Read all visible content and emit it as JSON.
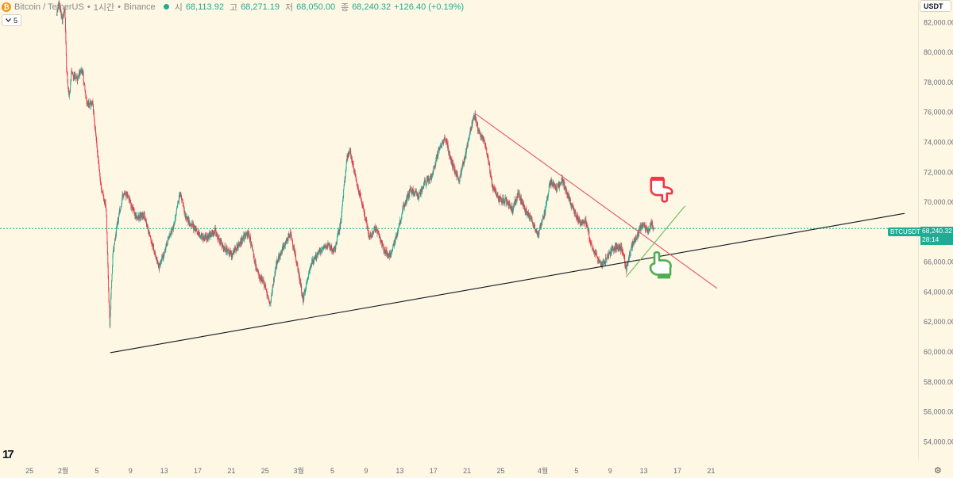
{
  "header": {
    "coin_glyph": "₿",
    "symbol": "Bitcoin / TetherUS",
    "separator1": "•",
    "interval": "1시간",
    "separator2": "•",
    "exchange": "Binance",
    "open_key": "시",
    "open": "68,113.92",
    "high_key": "고",
    "high": "68,271.19",
    "low_key": "저",
    "low": "68,050.00",
    "close_key": "종",
    "close": "68,240.32",
    "change": "+126.40 (+0.19%)"
  },
  "interval_button": {
    "icon": "chevron-down-icon",
    "label": "5"
  },
  "currency_button": {
    "label": "USDT"
  },
  "price_tag": {
    "price": "68,240.32",
    "countdown": "28:14"
  },
  "symbol_tag": {
    "label": "BTCUSDT"
  },
  "logo": {
    "text": "17"
  },
  "colors": {
    "up": "#22ab94",
    "down": "#f23645",
    "background": "#fdf7e4",
    "trendline": "#131722",
    "resistance": "#e5566a",
    "support": "#4caf50"
  },
  "chart_data": {
    "type": "candlestick",
    "y_ticks": [
      82000,
      80000,
      78000,
      76000,
      74000,
      72000,
      70000,
      68000,
      66000,
      64000,
      62000,
      60000,
      58000,
      56000,
      54000
    ],
    "y_tick_labels": [
      "82,000.00",
      "80,000.00",
      "78,000.00",
      "76,000.00",
      "74,000.00",
      "72,000.00",
      "70,000.00",
      "68,000.00",
      "66,000.00",
      "64,000.00",
      "62,000.00",
      "60,000.00",
      "58,000.00",
      "56,000.00",
      "54,000.00"
    ],
    "ylim": [
      52800,
      83500
    ],
    "x_tick_labels": [
      "25",
      "2월",
      "5",
      "9",
      "13",
      "17",
      "21",
      "25",
      "3월",
      "5",
      "9",
      "13",
      "17",
      "21",
      "25",
      "4월",
      "5",
      "9",
      "13",
      "17",
      "21"
    ],
    "x_ticks_day": [
      -4,
      0,
      4,
      8,
      12,
      16,
      20,
      24,
      28,
      32,
      36,
      40,
      44,
      48,
      52,
      57,
      61,
      65,
      69,
      73,
      77
    ],
    "xlim_day": [
      -7.5,
      101.5
    ],
    "last_price": 68240.32,
    "path_points": [
      {
        "day": -0.8,
        "price": 82500
      },
      {
        "day": -0.5,
        "price": 83300
      },
      {
        "day": -0.1,
        "price": 82100
      },
      {
        "day": 0.2,
        "price": 83000
      },
      {
        "day": 0.4,
        "price": 79000
      },
      {
        "day": 0.7,
        "price": 76900
      },
      {
        "day": 1.0,
        "price": 78600
      },
      {
        "day": 1.6,
        "price": 78200
      },
      {
        "day": 2.3,
        "price": 78800
      },
      {
        "day": 2.8,
        "price": 76600
      },
      {
        "day": 3.5,
        "price": 76600
      },
      {
        "day": 4.0,
        "price": 73800
      },
      {
        "day": 4.6,
        "price": 70700
      },
      {
        "day": 5.1,
        "price": 69700
      },
      {
        "day": 5.4,
        "price": 64000
      },
      {
        "day": 5.55,
        "price": 61900
      },
      {
        "day": 5.9,
        "price": 66500
      },
      {
        "day": 6.4,
        "price": 68400
      },
      {
        "day": 7.0,
        "price": 70300
      },
      {
        "day": 7.6,
        "price": 70500
      },
      {
        "day": 8.1,
        "price": 69700
      },
      {
        "day": 8.8,
        "price": 68900
      },
      {
        "day": 9.6,
        "price": 69200
      },
      {
        "day": 10.4,
        "price": 67600
      },
      {
        "day": 11.4,
        "price": 65600
      },
      {
        "day": 12.3,
        "price": 67200
      },
      {
        "day": 13.1,
        "price": 68300
      },
      {
        "day": 13.9,
        "price": 70600
      },
      {
        "day": 14.6,
        "price": 68900
      },
      {
        "day": 15.4,
        "price": 68400
      },
      {
        "day": 16.2,
        "price": 67800
      },
      {
        "day": 17.1,
        "price": 67600
      },
      {
        "day": 18.1,
        "price": 68100
      },
      {
        "day": 19.0,
        "price": 67000
      },
      {
        "day": 20.0,
        "price": 66500
      },
      {
        "day": 21.0,
        "price": 67300
      },
      {
        "day": 22.0,
        "price": 68000
      },
      {
        "day": 23.0,
        "price": 65500
      },
      {
        "day": 24.0,
        "price": 64400
      },
      {
        "day": 24.6,
        "price": 63200
      },
      {
        "day": 25.3,
        "price": 65800
      },
      {
        "day": 26.2,
        "price": 67100
      },
      {
        "day": 27.0,
        "price": 67900
      },
      {
        "day": 27.8,
        "price": 65900
      },
      {
        "day": 28.5,
        "price": 63500
      },
      {
        "day": 29.3,
        "price": 65600
      },
      {
        "day": 30.3,
        "price": 66700
      },
      {
        "day": 31.3,
        "price": 67100
      },
      {
        "day": 32.3,
        "price": 66800
      },
      {
        "day": 33.0,
        "price": 68700
      },
      {
        "day": 33.7,
        "price": 72900
      },
      {
        "day": 34.1,
        "price": 73500
      },
      {
        "day": 34.8,
        "price": 71500
      },
      {
        "day": 35.6,
        "price": 69700
      },
      {
        "day": 36.4,
        "price": 67600
      },
      {
        "day": 37.2,
        "price": 68300
      },
      {
        "day": 38.0,
        "price": 67000
      },
      {
        "day": 38.8,
        "price": 66300
      },
      {
        "day": 39.6,
        "price": 67700
      },
      {
        "day": 40.5,
        "price": 69800
      },
      {
        "day": 41.3,
        "price": 70800
      },
      {
        "day": 42.2,
        "price": 70400
      },
      {
        "day": 43.0,
        "price": 71300
      },
      {
        "day": 43.8,
        "price": 71700
      },
      {
        "day": 44.7,
        "price": 73600
      },
      {
        "day": 45.4,
        "price": 74300
      },
      {
        "day": 46.2,
        "price": 72600
      },
      {
        "day": 47.0,
        "price": 71400
      },
      {
        "day": 47.7,
        "price": 72900
      },
      {
        "day": 48.4,
        "price": 74800
      },
      {
        "day": 48.9,
        "price": 75800
      },
      {
        "day": 49.4,
        "price": 74700
      },
      {
        "day": 50.2,
        "price": 73900
      },
      {
        "day": 51.0,
        "price": 71100
      },
      {
        "day": 51.8,
        "price": 70200
      },
      {
        "day": 52.6,
        "price": 70100
      },
      {
        "day": 53.4,
        "price": 69500
      },
      {
        "day": 54.1,
        "price": 70600
      },
      {
        "day": 54.9,
        "price": 69500
      },
      {
        "day": 55.6,
        "price": 68900
      },
      {
        "day": 56.4,
        "price": 67800
      },
      {
        "day": 57.2,
        "price": 69200
      },
      {
        "day": 57.9,
        "price": 71400
      },
      {
        "day": 58.6,
        "price": 70900
      },
      {
        "day": 59.3,
        "price": 71500
      },
      {
        "day": 60.0,
        "price": 70400
      },
      {
        "day": 60.7,
        "price": 69400
      },
      {
        "day": 61.4,
        "price": 68600
      },
      {
        "day": 62.1,
        "price": 68700
      },
      {
        "day": 62.8,
        "price": 67100
      },
      {
        "day": 63.5,
        "price": 66200
      },
      {
        "day": 64.0,
        "price": 65800
      },
      {
        "day": 64.6,
        "price": 66200
      },
      {
        "day": 65.3,
        "price": 66900
      },
      {
        "day": 66.0,
        "price": 67000
      },
      {
        "day": 66.5,
        "price": 66800
      },
      {
        "day": 66.9,
        "price": 65400
      },
      {
        "day": 67.5,
        "price": 67000
      },
      {
        "day": 68.2,
        "price": 67800
      },
      {
        "day": 68.9,
        "price": 68600
      },
      {
        "day": 69.5,
        "price": 68000
      },
      {
        "day": 69.9,
        "price": 68600
      },
      {
        "day": 70.2,
        "price": 68240
      }
    ],
    "drawings": [
      {
        "name": "support-trendline",
        "color": "#131722",
        "from": {
          "day": 5.6,
          "price": 59950
        },
        "to": {
          "day": 100.0,
          "price": 69250
        }
      },
      {
        "name": "resistance-trendline",
        "color": "#e5566a",
        "from": {
          "day": 48.9,
          "price": 75950
        },
        "to": {
          "day": 77.7,
          "price": 64250
        }
      },
      {
        "name": "rising-support-line",
        "color": "#6cbf5c",
        "from": {
          "day": 66.9,
          "price": 65000
        },
        "to": {
          "day": 73.9,
          "price": 69750
        }
      }
    ],
    "annotations": [
      {
        "name": "pointing-down-hand-icon",
        "color": "#f23645",
        "day": 71.0,
        "price": 70900
      },
      {
        "name": "pointing-up-hand-icon",
        "color": "#4caf50",
        "day": 71.4,
        "price": 65800
      }
    ]
  }
}
